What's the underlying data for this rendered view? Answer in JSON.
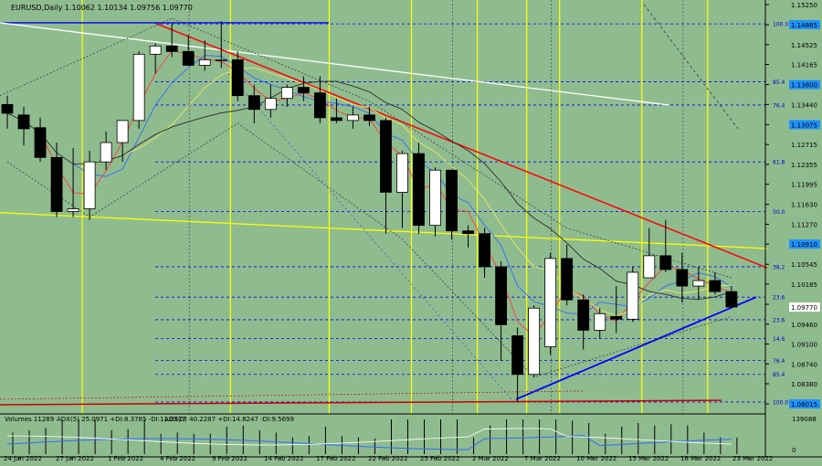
{
  "chart_info": {
    "symbol_line": "EURUSD,Daily  1.10062 1.10134 1.09756 1.09770",
    "current_price": "1.09770",
    "volume_indicator": "Volumes 11289",
    "adx_indicator": "ADX(5) 25.0971 +DI:8.3785 -DI:11.0517",
    "adx5_indicator": "ADX(5) 40.2287 +DI:14.8247 -DI:9.5699",
    "volume_axis_top": "139088",
    "volume_axis_bottom": "0"
  },
  "colors": {
    "background": "#8fbc8f",
    "bull_candle": "#ffffff",
    "bear_candle": "#000000",
    "red_trend": "#ff0000",
    "blue_trend": "#0000ff",
    "yellow": "#ffff00",
    "fib_blue": "#0000ff",
    "price_tag": "#1e90ff"
  },
  "chart_data": {
    "type": "candlestick",
    "price_axis": {
      "min": 1.079,
      "max": 1.1525,
      "tick_labels": [
        "1.15250",
        "1.14885",
        "1.14525",
        "1.14165",
        "1.13800",
        "1.13440",
        "1.13075",
        "1.12715",
        "1.12355",
        "1.11995",
        "1.11630",
        "1.11270",
        "1.10910",
        "1.10545",
        "1.10185",
        "1.09820",
        "1.09460",
        "1.09100",
        "1.08740",
        "1.08380",
        "1.08015"
      ],
      "tag_labels": [
        "1.14885",
        "1.13800",
        "1.13075",
        "1.10910",
        "1.09770",
        "1.08015"
      ]
    },
    "date_labels": [
      "24 Jan 2022",
      "27 Jan 2022",
      "1 Feb 2022",
      "4 Feb 2022",
      "9 Feb 2022",
      "14 Feb 2022",
      "17 Feb 2022",
      "22 Feb 2022",
      "25 Feb 2022",
      "2 Mar 2022",
      "7 Mar 2022",
      "10 Mar 2022",
      "15 Mar 2022",
      "18 Mar 2022",
      "23 Mar 2022"
    ],
    "fib_levels": [
      {
        "label": "100.0",
        "price": 1.149
      },
      {
        "label": "85.4",
        "price": 1.1385
      },
      {
        "label": "76.4",
        "price": 1.1343
      },
      {
        "label": "61.8",
        "price": 1.124
      },
      {
        "label": "50.0",
        "price": 1.115
      },
      {
        "label": "38.2",
        "price": 1.105
      },
      {
        "label": "23.6",
        "price": 1.0995
      },
      {
        "label": "23.6",
        "price": 1.0954
      },
      {
        "label": "14.6",
        "price": 1.092
      },
      {
        "label": "76.4",
        "price": 1.088
      },
      {
        "label": "85.4",
        "price": 1.0855
      },
      {
        "label": "100.0",
        "price": 1.0805
      }
    ],
    "candles": [
      {
        "o": 1.1344,
        "h": 1.136,
        "l": 1.13,
        "c": 1.1328
      },
      {
        "o": 1.1325,
        "h": 1.134,
        "l": 1.127,
        "c": 1.13
      },
      {
        "o": 1.1302,
        "h": 1.132,
        "l": 1.124,
        "c": 1.1248
      },
      {
        "o": 1.1248,
        "h": 1.1275,
        "l": 1.114,
        "c": 1.115
      },
      {
        "o": 1.115,
        "h": 1.1265,
        "l": 1.114,
        "c": 1.1155
      },
      {
        "o": 1.1155,
        "h": 1.126,
        "l": 1.1135,
        "c": 1.124
      },
      {
        "o": 1.124,
        "h": 1.1295,
        "l": 1.1225,
        "c": 1.1275
      },
      {
        "o": 1.1275,
        "h": 1.1315,
        "l": 1.124,
        "c": 1.1315
      },
      {
        "o": 1.1315,
        "h": 1.144,
        "l": 1.13,
        "c": 1.1435
      },
      {
        "o": 1.1435,
        "h": 1.1455,
        "l": 1.14,
        "c": 1.145
      },
      {
        "o": 1.145,
        "h": 1.149,
        "l": 1.143,
        "c": 1.144
      },
      {
        "o": 1.144,
        "h": 1.147,
        "l": 1.1415,
        "c": 1.1415
      },
      {
        "o": 1.1415,
        "h": 1.146,
        "l": 1.1405,
        "c": 1.1425
      },
      {
        "o": 1.1425,
        "h": 1.1495,
        "l": 1.141,
        "c": 1.1425
      },
      {
        "o": 1.1425,
        "h": 1.144,
        "l": 1.135,
        "c": 1.136
      },
      {
        "o": 1.136,
        "h": 1.138,
        "l": 1.131,
        "c": 1.1335
      },
      {
        "o": 1.1335,
        "h": 1.138,
        "l": 1.132,
        "c": 1.1355
      },
      {
        "o": 1.1355,
        "h": 1.138,
        "l": 1.134,
        "c": 1.1375
      },
      {
        "o": 1.1375,
        "h": 1.1395,
        "l": 1.135,
        "c": 1.1365
      },
      {
        "o": 1.1365,
        "h": 1.1395,
        "l": 1.131,
        "c": 1.132
      },
      {
        "o": 1.132,
        "h": 1.1355,
        "l": 1.131,
        "c": 1.1315
      },
      {
        "o": 1.1315,
        "h": 1.134,
        "l": 1.13,
        "c": 1.1325
      },
      {
        "o": 1.1325,
        "h": 1.134,
        "l": 1.1305,
        "c": 1.1315
      },
      {
        "o": 1.1315,
        "h": 1.132,
        "l": 1.111,
        "c": 1.1185
      },
      {
        "o": 1.1185,
        "h": 1.126,
        "l": 1.112,
        "c": 1.1255
      },
      {
        "o": 1.1255,
        "h": 1.1275,
        "l": 1.111,
        "c": 1.1125
      },
      {
        "o": 1.1125,
        "h": 1.123,
        "l": 1.1105,
        "c": 1.1225
      },
      {
        "o": 1.1225,
        "h": 1.1225,
        "l": 1.11,
        "c": 1.1115
      },
      {
        "o": 1.1115,
        "h": 1.1125,
        "l": 1.1085,
        "c": 1.111
      },
      {
        "o": 1.111,
        "h": 1.112,
        "l": 1.103,
        "c": 1.105
      },
      {
        "o": 1.105,
        "h": 1.106,
        "l": 1.088,
        "c": 1.0945
      },
      {
        "o": 1.0925,
        "h": 1.094,
        "l": 1.0805,
        "c": 1.0855
      },
      {
        "o": 1.0855,
        "h": 1.098,
        "l": 1.085,
        "c": 1.0975
      },
      {
        "o": 1.0905,
        "h": 1.1075,
        "l": 1.089,
        "c": 1.1065
      },
      {
        "o": 1.1065,
        "h": 1.109,
        "l": 1.098,
        "c": 1.099
      },
      {
        "o": 1.099,
        "h": 1.1,
        "l": 1.09,
        "c": 1.0935
      },
      {
        "o": 1.0935,
        "h": 1.0975,
        "l": 1.092,
        "c": 1.0965
      },
      {
        "o": 1.096,
        "h": 1.1015,
        "l": 1.093,
        "c": 1.0955
      },
      {
        "o": 1.0955,
        "h": 1.105,
        "l": 1.095,
        "c": 1.104
      },
      {
        "o": 1.103,
        "h": 1.112,
        "l": 1.103,
        "c": 1.107
      },
      {
        "o": 1.107,
        "h": 1.1135,
        "l": 1.104,
        "c": 1.1045
      },
      {
        "o": 1.1045,
        "h": 1.1075,
        "l": 1.0985,
        "c": 1.1015
      },
      {
        "o": 1.1015,
        "h": 1.105,
        "l": 1.099,
        "c": 1.1025
      },
      {
        "o": 1.1025,
        "h": 1.104,
        "l": 1.1,
        "c": 1.1005
      },
      {
        "o": 1.1005,
        "h": 1.1015,
        "l": 1.0976,
        "c": 1.0977
      }
    ]
  }
}
